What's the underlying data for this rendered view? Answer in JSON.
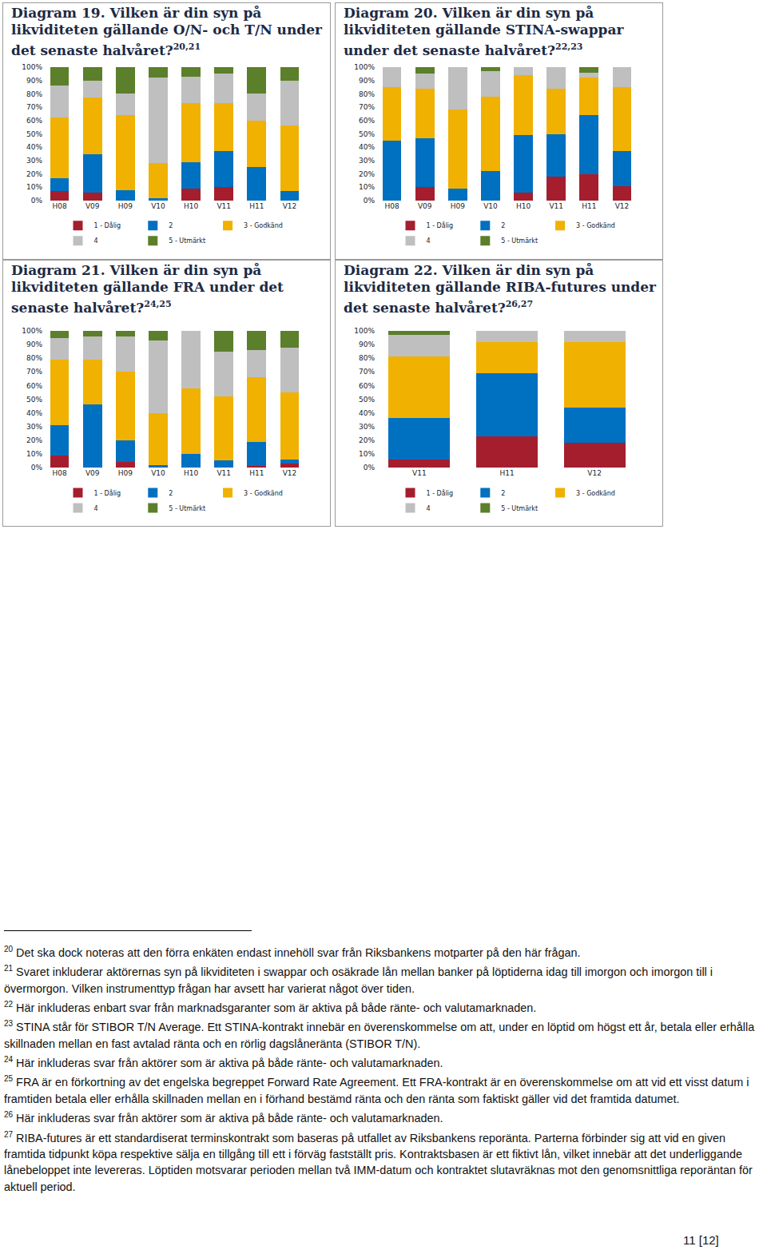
{
  "chart_data": [
    {
      "type": "bar",
      "stacked": true,
      "title": "Diagram 19. Vilken är din syn på likviditeten gällande O/N- och T/N under det senaste halvåret?",
      "title_refs": "20,21",
      "categories": [
        "H08",
        "V09",
        "H09",
        "V10",
        "H10",
        "V11",
        "H11",
        "V12"
      ],
      "series": [
        {
          "name": "1 - Dålig",
          "color": "#a51e2e",
          "values": [
            7,
            6,
            0,
            0,
            9,
            10,
            0,
            0
          ]
        },
        {
          "name": "2",
          "color": "#0070c0",
          "values": [
            10,
            29,
            8,
            2,
            20,
            27,
            25,
            7
          ]
        },
        {
          "name": "3 - Godkänd",
          "color": "#f0b100",
          "values": [
            45,
            42,
            56,
            26,
            44,
            36,
            35,
            49
          ]
        },
        {
          "name": "4",
          "color": "#bfbfbf",
          "values": [
            24,
            13,
            16,
            64,
            20,
            22,
            20,
            34
          ]
        },
        {
          "name": "5 - Utmärkt",
          "color": "#5b7f2a",
          "values": [
            14,
            10,
            20,
            8,
            7,
            5,
            20,
            10
          ]
        }
      ],
      "ylim": [
        0,
        100
      ],
      "yticks": [
        {
          "value": 0,
          "label": "0%"
        },
        {
          "value": 10,
          "label": "10%"
        },
        {
          "value": 20,
          "label": "20%"
        },
        {
          "value": 30,
          "label": "30%"
        },
        {
          "value": 40,
          "label": "40%"
        },
        {
          "value": 50,
          "label": "50%"
        },
        {
          "value": 60,
          "label": "60%"
        },
        {
          "value": 70,
          "label": "70%"
        },
        {
          "value": 80,
          "label": "80%"
        },
        {
          "value": 90,
          "label": "90%"
        },
        {
          "value": 100,
          "label": "100%"
        }
      ],
      "grid": false,
      "legend": "bottom"
    },
    {
      "type": "bar",
      "stacked": true,
      "title": "Diagram 20. Vilken är din syn på likviditeten gällande STINA-swappar under det senaste halvåret?",
      "title_refs": "22,23",
      "categories": [
        "H08",
        "V09",
        "H09",
        "V10",
        "H10",
        "V11",
        "H11",
        "V12"
      ],
      "series": [
        {
          "name": "1 - Dålig",
          "color": "#a51e2e",
          "values": [
            0,
            10,
            0,
            0,
            6,
            18,
            20,
            11
          ]
        },
        {
          "name": "2",
          "color": "#0070c0",
          "values": [
            45,
            37,
            9,
            22,
            43,
            32,
            44,
            26
          ]
        },
        {
          "name": "3 - Godkänd",
          "color": "#f0b100",
          "values": [
            40,
            37,
            59,
            56,
            45,
            34,
            28,
            48
          ]
        },
        {
          "name": "4",
          "color": "#bfbfbf",
          "values": [
            15,
            11,
            32,
            19,
            6,
            16,
            4,
            15
          ]
        },
        {
          "name": "5 - Utmärkt",
          "color": "#5b7f2a",
          "values": [
            0,
            5,
            0,
            3,
            0,
            0,
            4,
            0
          ]
        }
      ],
      "ylim": [
        0,
        100
      ],
      "yticks": [
        {
          "value": 0,
          "label": "0%"
        },
        {
          "value": 10,
          "label": "10%"
        },
        {
          "value": 20,
          "label": "20%"
        },
        {
          "value": 30,
          "label": "30%"
        },
        {
          "value": 40,
          "label": "40%"
        },
        {
          "value": 50,
          "label": "50%"
        },
        {
          "value": 60,
          "label": "60%"
        },
        {
          "value": 70,
          "label": "70%"
        },
        {
          "value": 80,
          "label": "80%"
        },
        {
          "value": 90,
          "label": "90%"
        },
        {
          "value": 100,
          "label": "100%"
        }
      ],
      "grid": false,
      "legend": "bottom"
    },
    {
      "type": "bar",
      "stacked": true,
      "title": "Diagram 21. Vilken är din syn på likviditeten gällande FRA under det senaste halvåret?",
      "title_refs": "24,25",
      "categories": [
        "H08",
        "V09",
        "H09",
        "V10",
        "H10",
        "V11",
        "H11",
        "V12"
      ],
      "series": [
        {
          "name": "1 - Dålig",
          "color": "#a51e2e",
          "values": [
            9,
            0,
            4,
            0,
            0,
            0,
            1,
            3
          ]
        },
        {
          "name": "2",
          "color": "#0070c0",
          "values": [
            22,
            46,
            16,
            2,
            10,
            5,
            18,
            3
          ]
        },
        {
          "name": "3 - Godkänd",
          "color": "#f0b100",
          "values": [
            48,
            33,
            50,
            38,
            48,
            47,
            47,
            49
          ]
        },
        {
          "name": "4",
          "color": "#bfbfbf",
          "values": [
            16,
            17,
            26,
            53,
            42,
            33,
            20,
            33
          ]
        },
        {
          "name": "5 - Utmärkt",
          "color": "#5b7f2a",
          "values": [
            5,
            4,
            4,
            7,
            0,
            15,
            14,
            12
          ]
        }
      ],
      "ylim": [
        0,
        100
      ],
      "yticks": [
        {
          "value": 0,
          "label": "0%"
        },
        {
          "value": 10,
          "label": "10%"
        },
        {
          "value": 20,
          "label": "20%"
        },
        {
          "value": 30,
          "label": "30%"
        },
        {
          "value": 40,
          "label": "40%"
        },
        {
          "value": 50,
          "label": "50%"
        },
        {
          "value": 60,
          "label": "60%"
        },
        {
          "value": 70,
          "label": "70%"
        },
        {
          "value": 80,
          "label": "80%"
        },
        {
          "value": 90,
          "label": "90%"
        },
        {
          "value": 100,
          "label": "100%"
        }
      ],
      "grid": false,
      "legend": "bottom"
    },
    {
      "type": "bar",
      "stacked": true,
      "title": "Diagram 22. Vilken är din syn på likviditeten gällande RIBA-futures under det senaste halvåret?",
      "title_refs": "26,27",
      "categories": [
        "V11",
        "H11",
        "V12"
      ],
      "series": [
        {
          "name": "1 - Dålig",
          "color": "#a51e2e",
          "values": [
            6,
            23,
            18
          ]
        },
        {
          "name": "2",
          "color": "#0070c0",
          "values": [
            30,
            46,
            26
          ]
        },
        {
          "name": "3 - Godkänd",
          "color": "#f0b100",
          "values": [
            45,
            23,
            48
          ]
        },
        {
          "name": "4",
          "color": "#bfbfbf",
          "values": [
            16,
            8,
            8
          ]
        },
        {
          "name": "5 - Utmärkt",
          "color": "#5b7f2a",
          "values": [
            3,
            0,
            0
          ]
        }
      ],
      "ylim": [
        0,
        100
      ],
      "yticks": [
        {
          "value": 0,
          "label": "0%"
        },
        {
          "value": 10,
          "label": "10%"
        },
        {
          "value": 20,
          "label": "20%"
        },
        {
          "value": 30,
          "label": "30%"
        },
        {
          "value": 40,
          "label": "40%"
        },
        {
          "value": 50,
          "label": "50%"
        },
        {
          "value": 60,
          "label": "60%"
        },
        {
          "value": 70,
          "label": "70%"
        },
        {
          "value": 80,
          "label": "80%"
        },
        {
          "value": 90,
          "label": "90%"
        },
        {
          "value": 100,
          "label": "100%"
        }
      ],
      "grid": false,
      "legend": "bottom"
    }
  ],
  "footnotes": [
    {
      "number": "20",
      "text": "Det ska dock noteras att den förra enkäten endast innehöll svar från Riksbankens motparter på den här frågan."
    },
    {
      "number": "21",
      "text": "Svaret inkluderar aktörernas syn på likviditeten i swappar och osäkrade lån mellan banker på löptiderna idag till imorgon och imorgon till i övermorgon. Vilken instrumenttyp frågan har avsett har varierat något över tiden."
    },
    {
      "number": "22",
      "text": "Här inkluderas enbart svar från marknadsgaranter som är aktiva på både ränte- och valutamarknaden."
    },
    {
      "number": "23",
      "text": "STINA står för STIBOR T/N Average. Ett STINA-kontrakt innebär en överenskommelse om att, under en löptid om högst ett år, betala eller erhålla skillnaden mellan en fast avtalad ränta och en rörlig dagslåneränta (STIBOR T/N)."
    },
    {
      "number": "24",
      "text": "Här inkluderas svar från aktörer som är aktiva på både ränte- och valutamarknaden."
    },
    {
      "number": "25",
      "text": "FRA är en förkortning av det engelska begreppet Forward Rate Agreement. Ett FRA-kontrakt är en överenskommelse om att vid ett visst datum i framtiden betala eller erhålla skillnaden mellan en i förhand bestämd ränta och den ränta som faktiskt gäller vid det framtida datumet."
    },
    {
      "number": "26",
      "text": "Här inkluderas svar från aktörer som är aktiva på både ränte- och valutamarknaden."
    },
    {
      "number": "27",
      "text": "RIBA-futures är ett standardiserat terminskontrakt som baseras på utfallet av Riksbankens reporänta. Parterna förbinder sig att vid en given framtida tidpunkt köpa respektive sälja en tillgång till ett i förväg fastställt pris. Kontraktsbasen är ett fiktivt lån, vilket innebär att det underliggande lånebeloppet inte levereras. Löptiden motsvarar perioden mellan två IMM-datum och kontraktet slutavräknas mot den genomsnittliga reporäntan för aktuell period."
    }
  ],
  "page_number": "11 [12]"
}
